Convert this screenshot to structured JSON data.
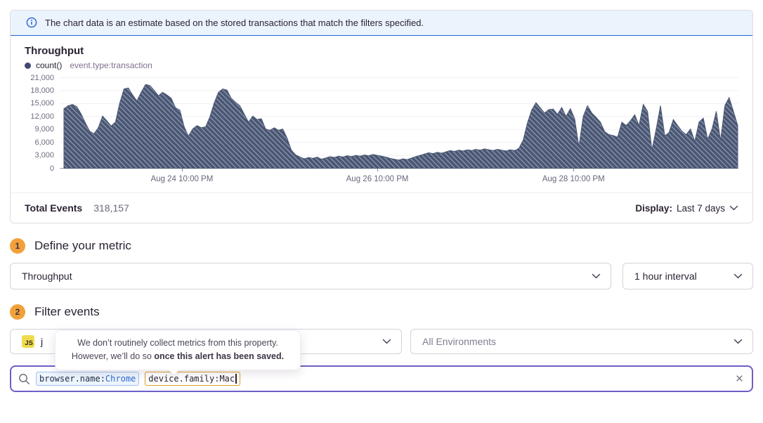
{
  "banner": {
    "text": "The chart data is an estimate based on the stored transactions that match the filters specified."
  },
  "chart_panel": {
    "title": "Throughput",
    "legend": {
      "series_label": "count()",
      "query_label": "event.type:transaction"
    },
    "footer": {
      "total_events_label": "Total Events",
      "total_events_value": "318,157",
      "display_label": "Display:",
      "display_value": "Last 7 days"
    }
  },
  "chart_data": {
    "type": "area",
    "title": "Throughput",
    "series": [
      {
        "name": "count() event.type:transaction",
        "values": [
          13800,
          14500,
          14800,
          14300,
          12600,
          10500,
          8600,
          8000,
          9400,
          12100,
          11000,
          9800,
          10700,
          15100,
          18400,
          18600,
          17000,
          15600,
          17600,
          19400,
          19200,
          18100,
          16800,
          17600,
          17000,
          16200,
          14000,
          13500,
          9700,
          7400,
          9100,
          9900,
          9400,
          9600,
          11900,
          15100,
          17600,
          18400,
          18100,
          16200,
          15300,
          14500,
          12600,
          10700,
          12100,
          11300,
          11500,
          9100,
          8800,
          9400,
          8800,
          9100,
          7000,
          4200,
          3100,
          2600,
          2200,
          2500,
          2300,
          2600,
          2100,
          2400,
          2700,
          2500,
          2800,
          2600,
          2900,
          2700,
          3000,
          2800,
          3100,
          2900,
          3200,
          3000,
          2800,
          2600,
          2300,
          2100,
          1900,
          2200,
          2000,
          2400,
          2700,
          3000,
          3300,
          3600,
          3400,
          3700,
          3500,
          3800,
          4100,
          3900,
          4200,
          4000,
          4300,
          4100,
          4400,
          4200,
          4500,
          4300,
          4100,
          4400,
          4200,
          4000,
          4300,
          4100,
          4600,
          6500,
          10500,
          13500,
          15200,
          14000,
          12800,
          13600,
          13700,
          12500,
          14100,
          12000,
          13800,
          11500,
          5000,
          12000,
          14500,
          12800,
          11800,
          10700,
          8500,
          7800,
          7600,
          7200,
          10700,
          9900,
          11000,
          12400,
          9900,
          14800,
          13200,
          4200,
          9000,
          14500,
          7500,
          8300,
          11300,
          9900,
          8600,
          7800,
          9100,
          6200,
          10700,
          11600,
          6700,
          9100,
          13200,
          6400,
          14500,
          16400,
          13200,
          9900
        ]
      }
    ],
    "ylim": [
      0,
      21000
    ],
    "y_ticks": [
      "0",
      "3,000",
      "6,000",
      "9,000",
      "12,000",
      "15,000",
      "18,000",
      "21,000"
    ],
    "y_tick_values": [
      0,
      3000,
      6000,
      9000,
      12000,
      15000,
      18000,
      21000
    ],
    "x_ticks": [
      {
        "label": "Aug 24 10:00 PM",
        "pos": 0.18
      },
      {
        "label": "Aug 26 10:00 PM",
        "pos": 0.468
      },
      {
        "label": "Aug 28 10:00 PM",
        "pos": 0.757
      }
    ],
    "grid": true,
    "legend_position": "top-left",
    "style": "hatched-area",
    "colors": {
      "fill": "#4A5774",
      "hatch": "#97A0B4",
      "grid": "#F1EFF4",
      "axis_line": "#A79BBE"
    }
  },
  "steps": [
    {
      "number": "1",
      "title": "Define your metric"
    },
    {
      "number": "2",
      "title": "Filter events"
    }
  ],
  "metric_controls": {
    "metric_select_value": "Throughput",
    "interval_select_value": "1 hour interval"
  },
  "filter_controls": {
    "project_badge": "JS",
    "project_label": "j",
    "environment_select_value": "All Environments"
  },
  "tooltip": {
    "line1": "We don’t routinely collect metrics from this property.",
    "line2_prefix": "However, we’ll do so ",
    "line2_bold": "once this alert has been saved."
  },
  "search": {
    "tokens": [
      {
        "key": "browser.name:",
        "value": "Chrome"
      },
      {
        "key": "device.family:",
        "value": "Mac"
      }
    ],
    "clear_label": "×"
  },
  "colors": {
    "banner_bg": "#EBF3FC",
    "banner_border": "#2562D4",
    "accent_purple": "#6C5FC7",
    "step_badge": "#F1A13A",
    "js_badge": "#F0DB4F",
    "token_active_border": "#D9A02B",
    "token_blue_value": "#2C6CD6",
    "text_primary": "#2B2233",
    "text_secondary": "#80708F"
  }
}
